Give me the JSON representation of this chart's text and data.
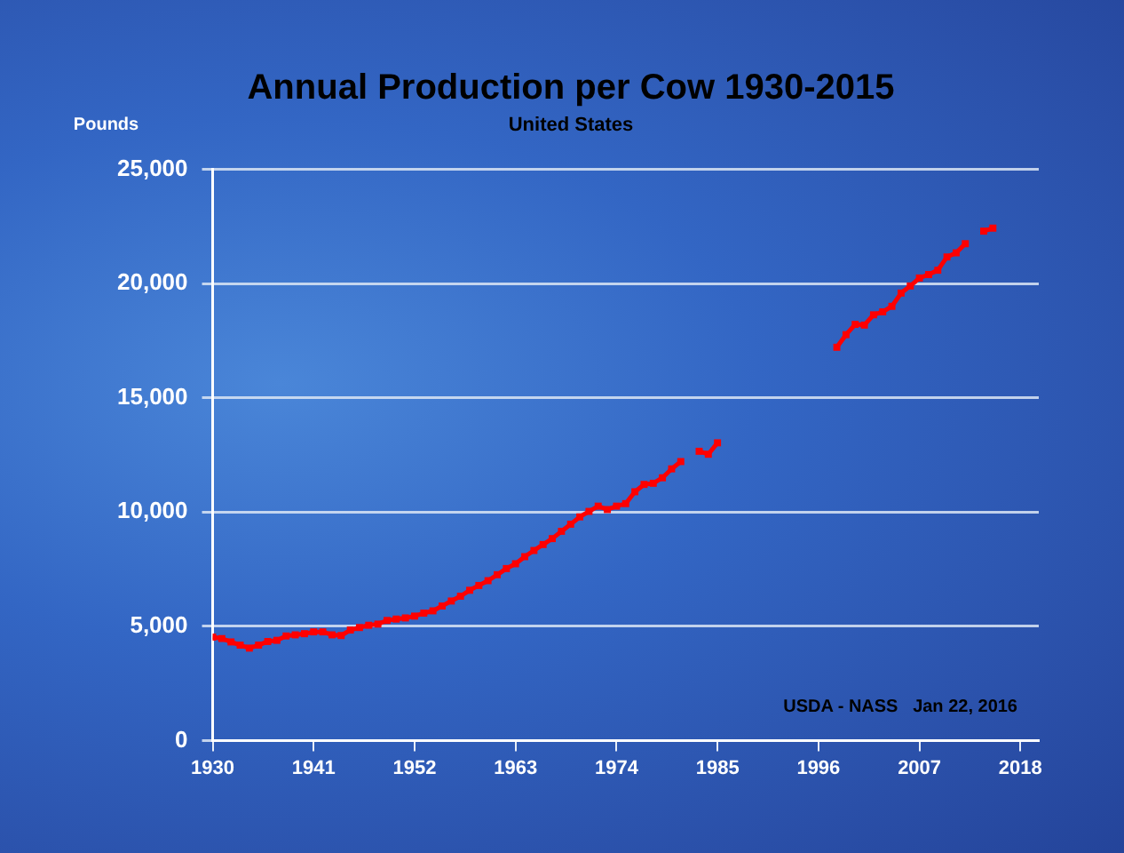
{
  "chart_data": {
    "type": "line",
    "title": "Annual Production per Cow 1930-2015",
    "subtitle": "United States",
    "ylabel": "Pounds",
    "annotations": [
      "USDA - NASS   Jan 22, 2016"
    ],
    "x": [
      1930,
      1931,
      1932,
      1933,
      1934,
      1935,
      1936,
      1937,
      1938,
      1939,
      1940,
      1941,
      1942,
      1943,
      1944,
      1945,
      1946,
      1947,
      1948,
      1949,
      1950,
      1951,
      1952,
      1953,
      1954,
      1955,
      1956,
      1957,
      1958,
      1959,
      1960,
      1961,
      1962,
      1963,
      1964,
      1965,
      1966,
      1967,
      1968,
      1969,
      1970,
      1971,
      1972,
      1973,
      1974,
      1975,
      1976,
      1977,
      1978,
      1979,
      1980,
      1981,
      1982,
      1983,
      1984,
      1985,
      1986,
      1987,
      1988,
      1989,
      1990,
      1991,
      1992,
      1993,
      1994,
      1995,
      1996,
      1997,
      1998,
      1999,
      2000,
      2001,
      2002,
      2003,
      2004,
      2005,
      2006,
      2007,
      2008,
      2009,
      2010,
      2011,
      2012,
      2013,
      2014,
      2015
    ],
    "series": [
      {
        "color": "#ff0000",
        "values": [
          4530,
          4470,
          4320,
          4180,
          4050,
          4180,
          4340,
          4390,
          4580,
          4630,
          4680,
          4760,
          4760,
          4630,
          4600,
          4840,
          4950,
          5050,
          5100,
          5260,
          5320,
          5370,
          5450,
          5580,
          5680,
          5890,
          6110,
          6320,
          6580,
          6790,
          7000,
          7260,
          7530,
          7740,
          8050,
          8320,
          8580,
          8840,
          9160,
          9470,
          9790,
          10030,
          10260,
          10110,
          10260,
          10370,
          10890,
          11210,
          11260,
          11500,
          11890,
          12210,
          null,
          12660,
          12530,
          13030,
          null,
          null,
          null,
          null,
          null,
          null,
          null,
          null,
          null,
          null,
          null,
          null,
          17210,
          17760,
          18210,
          18180,
          18630,
          18760,
          19000,
          19580,
          19890,
          20240,
          20390,
          20580,
          21160,
          21340,
          21740,
          null,
          22290,
          22420
        ]
      }
    ],
    "xlim": [
      1930,
      2020
    ],
    "xticks": [
      1930,
      1941,
      1952,
      1963,
      1974,
      1985,
      1996,
      2007,
      2018
    ],
    "ylim": [
      0,
      25000
    ],
    "yticks": [
      {
        "value": 0,
        "label": "0"
      },
      {
        "value": 5000,
        "label": "5,000"
      },
      {
        "value": 10000,
        "label": "10,000"
      },
      {
        "value": 15000,
        "label": "15,000"
      },
      {
        "value": 20000,
        "label": "20,000"
      },
      {
        "value": 25000,
        "label": "25,000"
      }
    ],
    "grid": "y",
    "legend": false,
    "marker": "square",
    "line_style": "solid"
  }
}
